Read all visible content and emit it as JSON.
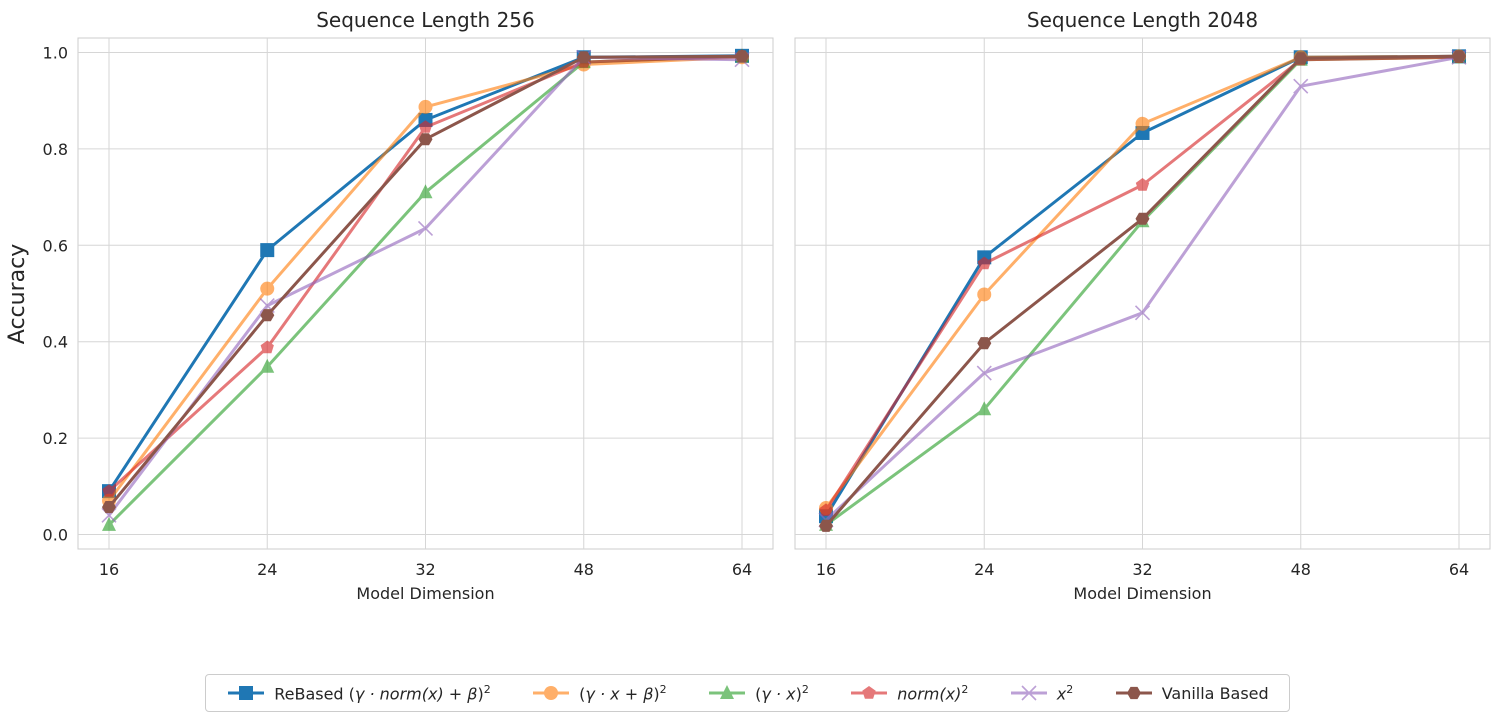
{
  "chart_data": [
    {
      "type": "line",
      "title": "Sequence Length 256",
      "xlabel": "Model Dimension",
      "ylabel": "Accuracy",
      "categories": [
        "16",
        "24",
        "32",
        "48",
        "64"
      ],
      "ylim": [
        -0.03,
        1.03
      ],
      "yticks": [
        "0.0",
        "0.2",
        "0.4",
        "0.6",
        "0.8",
        "1.0"
      ],
      "grid": true,
      "series": [
        {
          "name": "ReBased (γ·norm(x)+β)²",
          "color": "#1f77b4",
          "marker": "square",
          "values": [
            0.09,
            0.59,
            0.86,
            0.99,
            0.993
          ]
        },
        {
          "name": "(γ·x+β)²",
          "color": "#ff7f0e",
          "marker": "circle",
          "values": [
            0.07,
            0.51,
            0.887,
            0.975,
            0.99
          ]
        },
        {
          "name": "(γ·x)²",
          "color": "#2ca02c",
          "marker": "triangle",
          "values": [
            0.02,
            0.348,
            0.71,
            0.98,
            0.992
          ]
        },
        {
          "name": "norm(x)²",
          "color": "#d62728",
          "marker": "pentagon",
          "values": [
            0.09,
            0.388,
            0.845,
            0.98,
            0.992
          ]
        },
        {
          "name": "x²",
          "color": "#9467bd",
          "marker": "x",
          "values": [
            0.04,
            0.475,
            0.635,
            0.99,
            0.985
          ]
        },
        {
          "name": "Vanilla Based",
          "color": "#8c564b",
          "marker": "hexagon",
          "values": [
            0.057,
            0.455,
            0.82,
            0.99,
            0.992
          ]
        }
      ]
    },
    {
      "type": "line",
      "title": "Sequence Length 2048",
      "xlabel": "Model Dimension",
      "ylabel": "",
      "categories": [
        "16",
        "24",
        "32",
        "48",
        "64"
      ],
      "ylim": [
        -0.03,
        1.03
      ],
      "yticks": [
        "0.0",
        "0.2",
        "0.4",
        "0.6",
        "0.8",
        "1.0"
      ],
      "grid": true,
      "series": [
        {
          "name": "ReBased (γ·norm(x)+β)²",
          "color": "#1f77b4",
          "marker": "square",
          "values": [
            0.038,
            0.575,
            0.833,
            0.99,
            0.992
          ]
        },
        {
          "name": "(γ·x+β)²",
          "color": "#ff7f0e",
          "marker": "circle",
          "values": [
            0.055,
            0.498,
            0.852,
            0.99,
            0.992
          ]
        },
        {
          "name": "(γ·x)²",
          "color": "#2ca02c",
          "marker": "triangle",
          "values": [
            0.02,
            0.26,
            0.65,
            0.985,
            0.99
          ]
        },
        {
          "name": "norm(x)²",
          "color": "#d62728",
          "marker": "pentagon",
          "values": [
            0.05,
            0.562,
            0.725,
            0.985,
            0.99
          ]
        },
        {
          "name": "x²",
          "color": "#9467bd",
          "marker": "x",
          "values": [
            0.03,
            0.335,
            0.46,
            0.93,
            0.99
          ]
        },
        {
          "name": "Vanilla Based",
          "color": "#8c564b",
          "marker": "hexagon",
          "values": [
            0.018,
            0.397,
            0.655,
            0.988,
            0.992
          ]
        }
      ]
    }
  ],
  "legend": {
    "placement": "bottom-center",
    "items": [
      {
        "key": "rebased",
        "prefix": "ReBased (",
        "sym": "γ · norm(x) + β",
        "suffix": ")",
        "sup": "2",
        "color": "#1f77b4",
        "marker": "square"
      },
      {
        "key": "affine",
        "prefix": "(",
        "sym": "γ · x + β",
        "suffix": ")",
        "sup": "2",
        "color": "#ff7f0e",
        "marker": "circle"
      },
      {
        "key": "scale",
        "prefix": "(",
        "sym": "γ · x",
        "suffix": ")",
        "sup": "2",
        "color": "#2ca02c",
        "marker": "triangle"
      },
      {
        "key": "norm",
        "prefix": "",
        "sym": "norm(x)",
        "suffix": "",
        "sup": "2",
        "color": "#d62728",
        "marker": "pentagon"
      },
      {
        "key": "square",
        "prefix": "",
        "sym": "x",
        "suffix": "",
        "sup": "2",
        "color": "#9467bd",
        "marker": "x"
      },
      {
        "key": "vanilla",
        "prefix": "Vanilla Based",
        "sym": "",
        "suffix": "",
        "sup": "",
        "color": "#8c564b",
        "marker": "hexagon"
      }
    ]
  }
}
